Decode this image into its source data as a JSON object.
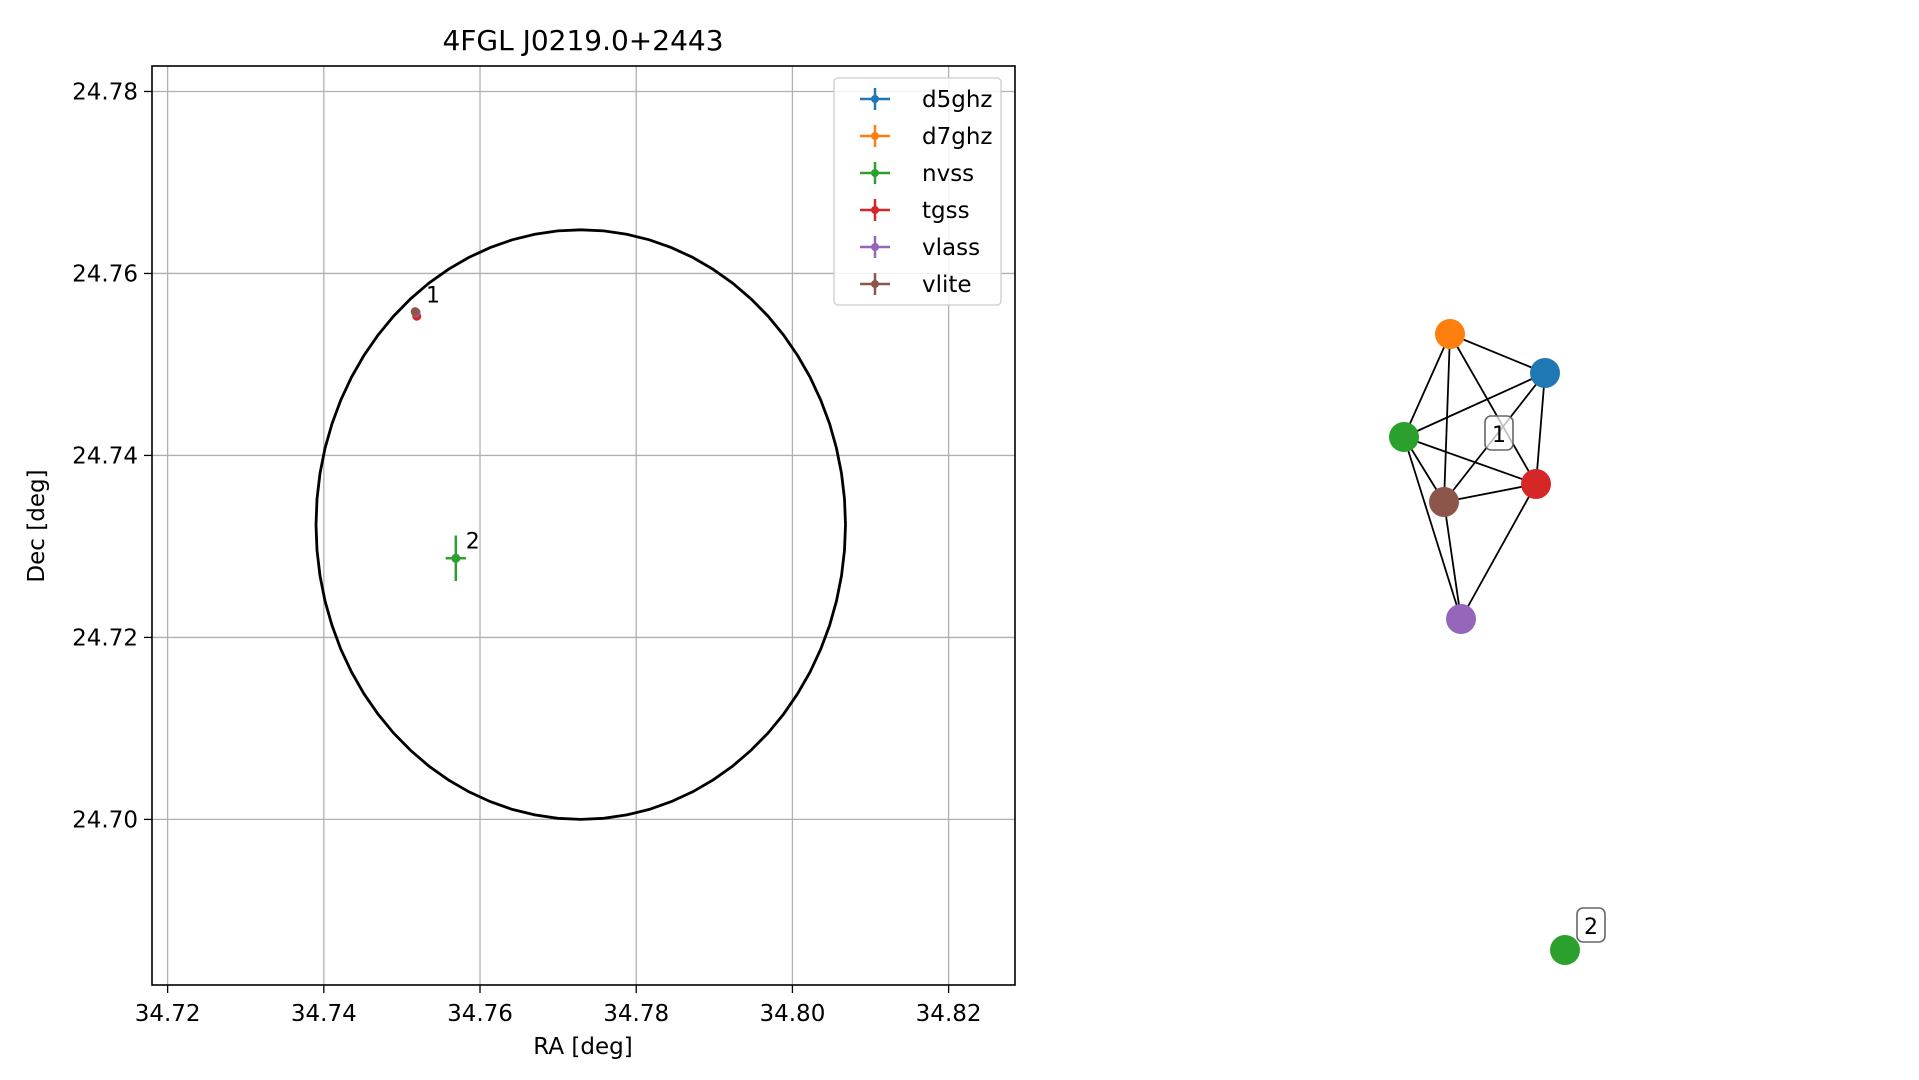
{
  "chart_data": [
    {
      "type": "scatter",
      "title": "4FGL J0219.0+2443",
      "xlabel": "RA [deg]",
      "ylabel": "Dec [deg]",
      "xlim": [
        34.718,
        34.8285
      ],
      "ylim": [
        24.6818,
        24.7828
      ],
      "grid": true,
      "legend_position": "top-right",
      "xticks": [
        "34.72",
        "34.74",
        "34.76",
        "34.78",
        "34.80",
        "34.82"
      ],
      "yticks": [
        "24.70",
        "24.72",
        "24.74",
        "24.76",
        "24.78"
      ],
      "series": [
        {
          "name": "d5ghz",
          "color": "#1f77b4",
          "points": [
            {
              "x": 34.7518,
              "y": 24.7557,
              "xerr": 0.0001,
              "yerr": 0.0001
            }
          ]
        },
        {
          "name": "d7ghz",
          "color": "#ff7f0e",
          "points": [
            {
              "x": 34.7518,
              "y": 24.7557,
              "xerr": 0.0001,
              "yerr": 0.0001
            }
          ]
        },
        {
          "name": "nvss",
          "color": "#2ca02c",
          "points": [
            {
              "x": 34.7518,
              "y": 24.7557,
              "xerr": 0.0001,
              "yerr": 0.0001
            },
            {
              "x": 34.7569,
              "y": 24.7287,
              "xerr": 0.0013,
              "yerr": 0.0025
            }
          ]
        },
        {
          "name": "tgss",
          "color": "#d62728",
          "points": [
            {
              "x": 34.7519,
              "y": 24.7553,
              "xerr": 0.0002,
              "yerr": 0.0002
            }
          ]
        },
        {
          "name": "vlass",
          "color": "#9467bd",
          "points": [
            {
              "x": 34.7518,
              "y": 24.7557,
              "xerr": 0.0001,
              "yerr": 0.0001
            }
          ]
        },
        {
          "name": "vlite",
          "color": "#8c564b",
          "points": [
            {
              "x": 34.7517,
              "y": 24.7558,
              "xerr": 0.0002,
              "yerr": 0.0002
            }
          ]
        }
      ],
      "ellipse": {
        "center_ra": 34.7729,
        "center_dec": 24.7324,
        "semi_ra": 0.0339,
        "semi_dec": 0.0324,
        "color": "#000000"
      },
      "annotations": [
        {
          "text": "1",
          "x": 34.7518,
          "y": 24.7557
        },
        {
          "text": "2",
          "x": 34.7569,
          "y": 24.7287
        }
      ]
    },
    {
      "type": "network",
      "nodes": [
        {
          "id": "d5ghz",
          "color": "#1f77b4"
        },
        {
          "id": "d7ghz",
          "color": "#ff7f0e"
        },
        {
          "id": "nvss",
          "color": "#2ca02c"
        },
        {
          "id": "tgss",
          "color": "#d62728"
        },
        {
          "id": "vlite",
          "color": "#8c564b"
        },
        {
          "id": "vlass",
          "color": "#9467bd"
        },
        {
          "id": "nvss-2",
          "color": "#2ca02c"
        }
      ],
      "edges": [
        [
          "d7ghz",
          "d5ghz"
        ],
        [
          "d7ghz",
          "nvss"
        ],
        [
          "d7ghz",
          "vlite"
        ],
        [
          "d7ghz",
          "tgss"
        ],
        [
          "d5ghz",
          "nvss"
        ],
        [
          "d5ghz",
          "tgss"
        ],
        [
          "d5ghz",
          "vlite"
        ],
        [
          "nvss",
          "tgss"
        ],
        [
          "nvss",
          "vlite"
        ],
        [
          "nvss",
          "vlass"
        ],
        [
          "vlite",
          "tgss"
        ],
        [
          "vlite",
          "vlass"
        ],
        [
          "tgss",
          "vlass"
        ]
      ],
      "cluster_labels": [
        "1",
        "2"
      ]
    }
  ]
}
